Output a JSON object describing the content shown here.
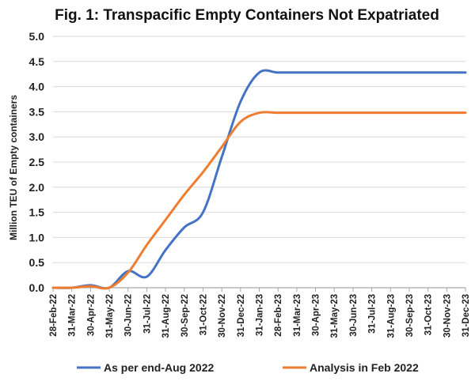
{
  "chart_data": {
    "type": "line",
    "title": "Fig. 1: Transpacific Empty Containers Not Expatriated",
    "ylabel": "Million TEU of Empty containers",
    "xlabel": "",
    "ylim": [
      0,
      5
    ],
    "yticks": [
      "0.0",
      "0.5",
      "1.0",
      "1.5",
      "2.0",
      "2.5",
      "3.0",
      "3.5",
      "4.0",
      "4.5",
      "5.0"
    ],
    "x": [
      "28-Feb-22",
      "31-Mar-22",
      "30-Apr-22",
      "31-May-22",
      "30-Jun-22",
      "31-Jul-22",
      "31-Aug-22",
      "30-Sep-22",
      "31-Oct-22",
      "30-Nov-22",
      "31-Dec-22",
      "31-Jan-23",
      "28-Feb-23",
      "31-Mar-23",
      "30-Apr-23",
      "31-May-23",
      "30-Jun-23",
      "31-Jul-23",
      "31-Aug-23",
      "30-Sep-23",
      "31-Oct-23",
      "30-Nov-23",
      "31-Dec-23"
    ],
    "series": [
      {
        "name": "As per end-Aug 2022",
        "color": "#4472C4",
        "values": [
          0.0,
          0.0,
          0.05,
          0.0,
          0.33,
          0.22,
          0.75,
          1.2,
          1.5,
          2.6,
          3.7,
          4.28,
          4.28,
          4.28,
          4.28,
          4.28,
          4.28,
          4.28,
          4.28,
          4.28,
          4.28,
          4.28,
          4.28
        ]
      },
      {
        "name": "Analysis in Feb 2022",
        "color": "#ED7D31",
        "values": [
          0.0,
          0.0,
          0.03,
          0.0,
          0.3,
          0.85,
          1.35,
          1.85,
          2.3,
          2.8,
          3.3,
          3.48,
          3.48,
          3.48,
          3.48,
          3.48,
          3.48,
          3.48,
          3.48,
          3.48,
          3.48,
          3.48,
          3.48
        ]
      }
    ],
    "grid": "horizontal",
    "legend_position": "bottom"
  }
}
